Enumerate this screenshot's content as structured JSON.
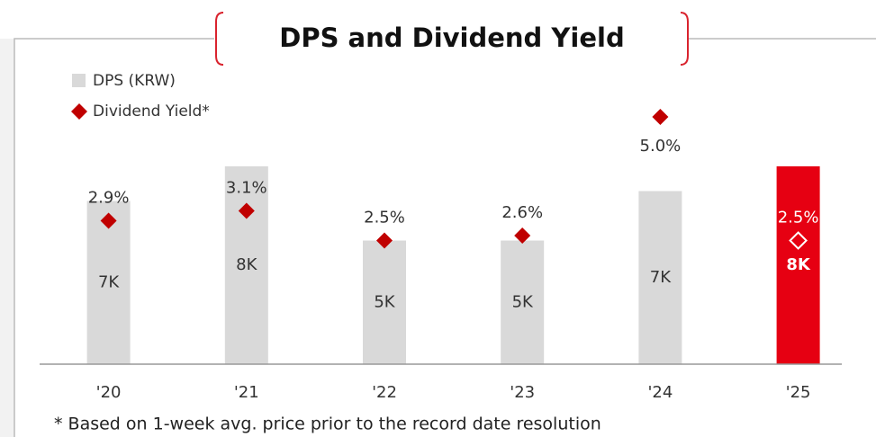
{
  "chart_data": {
    "type": "bar_diamond",
    "title": "DPS and Dividend Yield",
    "footnote": "* Based on 1-week avg. price prior to the record date resolution",
    "categories": [
      "'20",
      "'21",
      "'22",
      "'23",
      "'24",
      "'25"
    ],
    "series": [
      {
        "name": "DPS (KRW)",
        "color": "#d9d9d9",
        "colors": [
          "#d9d9d9",
          "#d9d9d9",
          "#d9d9d9",
          "#d9d9d9",
          "#d9d9d9",
          "#e60012"
        ],
        "values": [
          6600,
          8000,
          5000,
          5000,
          7000,
          8000
        ],
        "value_labels": [
          "7K",
          "8K",
          "5K",
          "5K",
          "7K",
          "8K"
        ]
      },
      {
        "name": "Dividend Yield*",
        "color": "#c00000",
        "axis": "y2",
        "values": [
          2.9,
          3.1,
          2.5,
          2.6,
          5.0,
          2.5
        ],
        "value_labels": [
          "2.9%",
          "3.1%",
          "2.5%",
          "2.6%",
          "5.0%",
          "2.5%"
        ]
      }
    ],
    "highlight_index": 5,
    "ylim": [
      0,
      10000
    ],
    "y2lim": [
      0,
      5
    ]
  }
}
